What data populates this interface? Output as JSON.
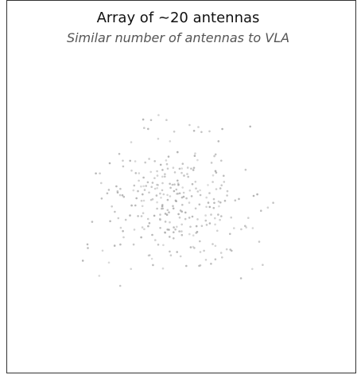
{
  "header": {
    "title": "Array of ~20 antennas",
    "subtitle": "Similar number of antennas to VLA"
  }
}
